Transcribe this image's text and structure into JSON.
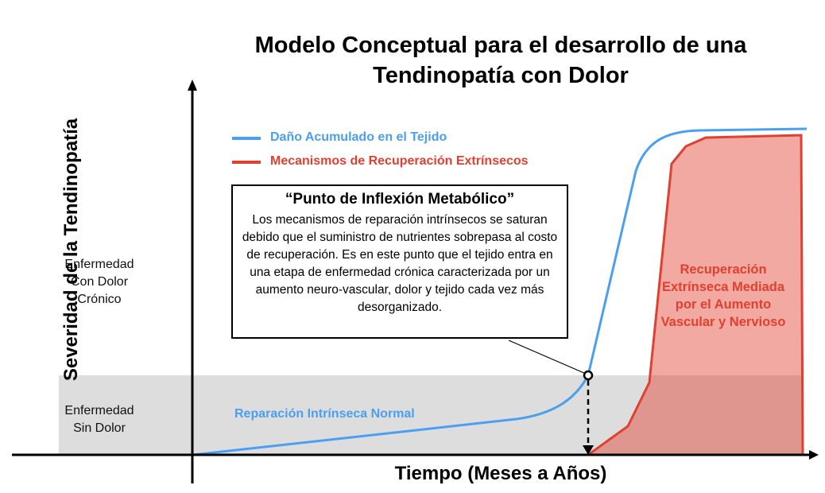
{
  "title_line1": "Modelo Conceptual para el desarrollo de una",
  "title_line2": "Tendinopatía con Dolor",
  "y_axis_label": "Severidad de la Tendinopatía",
  "x_axis_label": "Tiempo (Meses a Años)",
  "y_regions": {
    "upper_line1": "Enfermedad",
    "upper_line2": "Con Dolor",
    "upper_line3": "Crónico",
    "lower_line1": "Enfermedad",
    "lower_line2": "Sin Dolor"
  },
  "legend": [
    {
      "label": "Daño Acumulado en el Tejido",
      "color": "#4a9ff0"
    },
    {
      "label": "Mecanismos de Recuperación Extrínsecos",
      "color": "#e04030"
    }
  ],
  "callout": {
    "title": "“Punto de Inflexión Metabólico”",
    "body": "Los mecanismos de reparación intrínsecos se saturan debido que el suministro de nutrientes sobrepasa al costo de recuperación. Es en este punto que el tejido entra en una etapa de enfermedad crónica caracterizada por un aumento neuro-vascular, dolor y tejido cada vez más desorganizado."
  },
  "region_labels": {
    "blue": "Reparación Intrínseca Normal",
    "red": "Recuperación Extrínseca Mediada por el Aumento Vascular y Nervioso"
  },
  "colors": {
    "blue": "#4a9ff0",
    "red": "#e04030",
    "red_fill": "#eca69e",
    "band": "#dcdcdc"
  }
}
